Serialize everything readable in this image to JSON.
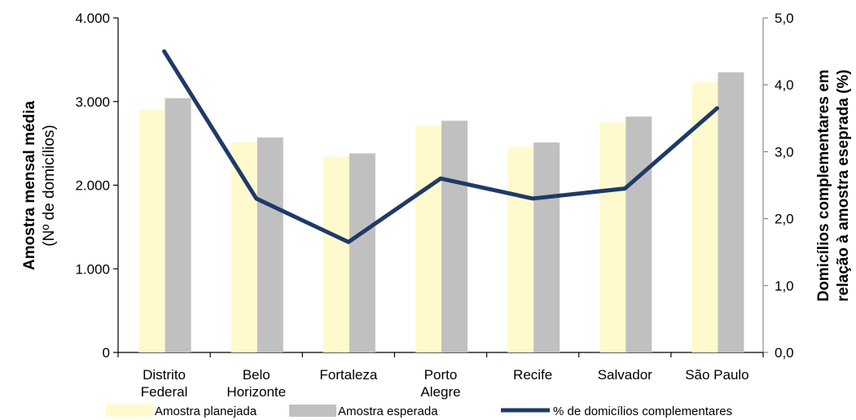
{
  "chart_data": {
    "type": "bar",
    "categories": [
      [
        "Distrito",
        "Federal"
      ],
      [
        "Belo",
        "Horizonte"
      ],
      [
        "Fortaleza"
      ],
      [
        "Porto",
        "Alegre"
      ],
      [
        "Recife"
      ],
      [
        "Salvador"
      ],
      [
        "São Paulo"
      ]
    ],
    "series": [
      {
        "name": "Amostra planejada",
        "kind": "bar",
        "axis": "left",
        "color": "#FFFACD",
        "values": [
          2900,
          2510,
          2340,
          2710,
          2460,
          2750,
          3230
        ]
      },
      {
        "name": "Amostra esperada",
        "kind": "bar",
        "axis": "left",
        "color": "#C0C0C0",
        "values": [
          3040,
          2570,
          2380,
          2770,
          2510,
          2820,
          3350
        ]
      },
      {
        "name": "% de domicílios  complementares",
        "kind": "line",
        "axis": "right",
        "color": "#1F3A68",
        "values": [
          4.5,
          2.3,
          1.65,
          2.6,
          2.3,
          2.45,
          3.65
        ]
      }
    ],
    "y_left": {
      "label_bold": "Amostra mensal média",
      "label_normal": "(Nº de domicílios)",
      "ylim": [
        0,
        4000
      ],
      "ticks": [
        "0",
        "1.000",
        "2.000",
        "3.000",
        "4.000"
      ]
    },
    "y_right": {
      "label_line1": "Domicílios complementares em",
      "label_line2": "relação à amostra eseprada (%)",
      "ylim": [
        0,
        5
      ],
      "ticks": [
        "0,0",
        "1,0",
        "2,0",
        "3,0",
        "4,0",
        "5,0"
      ]
    },
    "grid": false,
    "legend_position": "bottom"
  }
}
